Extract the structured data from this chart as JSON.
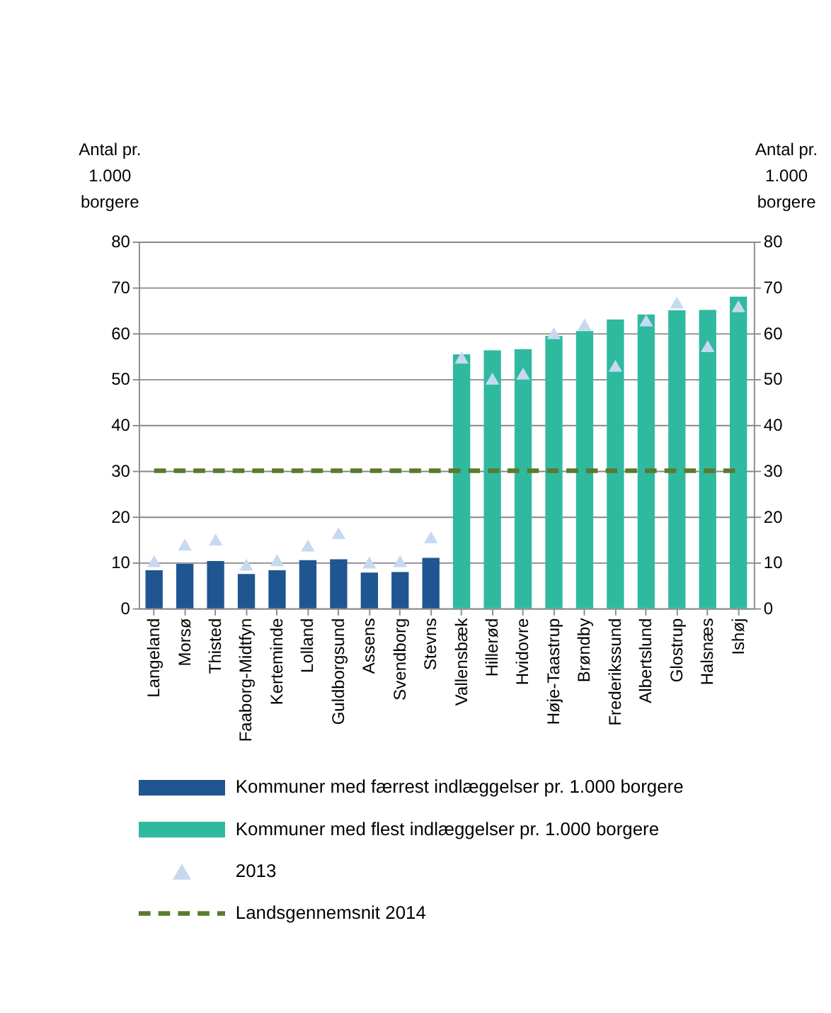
{
  "chart_data": {
    "type": "bar",
    "ylabel": "Antal pr. 1.000 borgere",
    "y2label": "Antal pr. 1.000 borgere",
    "categories": [
      "Langeland",
      "Morsø",
      "Thisted",
      "Faaborg-Midtfyn",
      "Kerteminde",
      "Lolland",
      "Guldborgsund",
      "Assens",
      "Svendborg",
      "Stevns",
      "Vallensbæk",
      "Hillerød",
      "Hvidovre",
      "Høje-Taastrup",
      "Brøndby",
      "Frederikssund",
      "Albertslund",
      "Glostrup",
      "Halsnæs",
      "Ishøj"
    ],
    "series": [
      {
        "name": "Kommuner med færrest indlæggelser pr. 1.000 borgere",
        "color": "#1f5591",
        "values": [
          8.3,
          9.7,
          10.3,
          7.5,
          8.3,
          10.5,
          10.7,
          7.8,
          7.9,
          11.0,
          null,
          null,
          null,
          null,
          null,
          null,
          null,
          null,
          null,
          null
        ]
      },
      {
        "name": "Kommuner med flest indlæggelser pr. 1.000 borgere",
        "color": "#2fbaa0",
        "values": [
          null,
          null,
          null,
          null,
          null,
          null,
          null,
          null,
          null,
          null,
          55.4,
          56.3,
          56.5,
          59.4,
          60.5,
          63.0,
          64.1,
          65.0,
          65.1,
          68.0
        ]
      },
      {
        "name": "2013",
        "type": "scatter",
        "marker": "triangle",
        "color": "#c6d9f0",
        "values": [
          10.3,
          13.9,
          15.0,
          9.5,
          10.5,
          13.7,
          16.4,
          10.0,
          10.3,
          15.5,
          54.7,
          50.1,
          51.2,
          60.0,
          61.9,
          52.9,
          62.8,
          66.7,
          57.2,
          65.9
        ]
      },
      {
        "name": "Landsgennemsnit 2014",
        "type": "line",
        "marker": "none",
        "line_style": "dashed",
        "color": "#5a7a2e",
        "values": [
          30,
          30,
          30,
          30,
          30,
          30,
          30,
          30,
          30,
          30,
          30,
          30,
          30,
          30,
          30,
          30,
          30,
          30,
          30,
          30
        ]
      }
    ],
    "ylim": [
      0,
      80
    ],
    "yticks": [
      0,
      10,
      20,
      30,
      40,
      50,
      60,
      70,
      80
    ],
    "y2lim": [
      0,
      80
    ],
    "y2ticks": [
      0,
      10,
      20,
      30,
      40,
      50,
      60,
      70,
      80
    ],
    "grid": "y",
    "legend": "bottom"
  }
}
